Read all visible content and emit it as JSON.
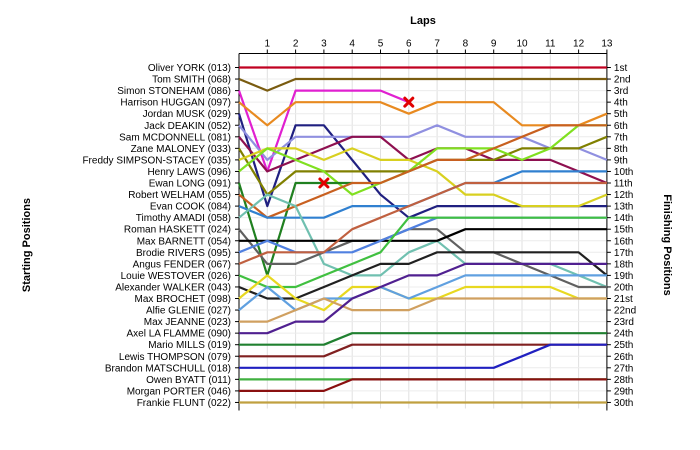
{
  "chart_data": {
    "type": "line",
    "title": "",
    "xlabel": "Laps",
    "ylabel_left": "Starting Positions",
    "ylabel_right": "Finishing Positions",
    "x": [
      0,
      1,
      2,
      3,
      4,
      5,
      6,
      7,
      8,
      9,
      10,
      11,
      12,
      13
    ],
    "x_tick_labels": [
      "1",
      "2",
      "3",
      "4",
      "5",
      "6",
      "7",
      "8",
      "9",
      "10",
      "11",
      "12",
      "13"
    ],
    "y_range": [
      1,
      30
    ],
    "y_inverted": true,
    "grid": true,
    "finishing_labels": [
      "1st",
      "2nd",
      "3rd",
      "4th",
      "5th",
      "6th",
      "7th",
      "8th",
      "9th",
      "10th",
      "11th",
      "12th",
      "13th",
      "14th",
      "15th",
      "16th",
      "17th",
      "18th",
      "19th",
      "20th",
      "21st",
      "22nd",
      "23rd",
      "24th",
      "25th",
      "26th",
      "27th",
      "28th",
      "29th",
      "30th"
    ],
    "series": [
      {
        "name": "Oliver YORK (013)",
        "color": "#c00020",
        "values": [
          1,
          1,
          1,
          1,
          1,
          1,
          1,
          1,
          1,
          1,
          1,
          1,
          1,
          1
        ]
      },
      {
        "name": "Tom SMITH (068)",
        "color": "#7a5c10",
        "values": [
          2,
          3,
          2,
          2,
          2,
          2,
          2,
          2,
          2,
          2,
          2,
          2,
          2,
          2
        ]
      },
      {
        "name": "Simon STONEHAM (086)",
        "color": "#e020d0",
        "values": [
          3,
          10,
          3,
          3,
          3,
          3,
          4,
          null,
          null,
          null,
          null,
          null,
          null,
          null
        ]
      },
      {
        "name": "Harrison HUGGAN (097)",
        "color": "#e88a20",
        "values": [
          4,
          6,
          4,
          4,
          4,
          4,
          5,
          4,
          4,
          4,
          6,
          6,
          6,
          5
        ]
      },
      {
        "name": "Jordan MUSK (029)",
        "color": "#202080",
        "values": [
          5,
          13,
          6,
          6,
          9,
          12,
          14,
          13,
          13,
          13,
          13,
          13,
          13,
          13
        ]
      },
      {
        "name": "Jack DEAKIN (052)",
        "color": "#9090e0",
        "values": [
          6,
          9,
          7,
          7,
          7,
          7,
          7,
          6,
          7,
          7,
          7,
          8,
          8,
          9
        ]
      },
      {
        "name": "Sam MCDONNELL (081)",
        "color": "#8e1050",
        "values": [
          7,
          10,
          9,
          8,
          7,
          7,
          9,
          8,
          8,
          9,
          9,
          9,
          10,
          11
        ]
      },
      {
        "name": "Zane MALONEY (033)",
        "color": "#808000",
        "values": [
          8,
          12,
          10,
          10,
          10,
          10,
          10,
          9,
          9,
          9,
          8,
          8,
          8,
          7
        ]
      },
      {
        "name": "Freddy SIMPSON-STACEY (035)",
        "color": "#d8d020",
        "values": [
          9,
          8,
          8,
          9,
          8,
          9,
          9,
          10,
          12,
          12,
          13,
          13,
          13,
          12
        ]
      },
      {
        "name": "Henry LAWS (096)",
        "color": "#80e020",
        "values": [
          10,
          8,
          9,
          10,
          12,
          11,
          10,
          8,
          8,
          8,
          9,
          8,
          6,
          6
        ]
      },
      {
        "name": "Ewan LONG (091)",
        "color": "#208020",
        "values": [
          11,
          19,
          11,
          11,
          11,
          null,
          null,
          null,
          null,
          null,
          null,
          null,
          null,
          null
        ]
      },
      {
        "name": "Robert WELHAM (055)",
        "color": "#c86020",
        "values": [
          12,
          14,
          13,
          12,
          11,
          11,
          10,
          9,
          9,
          8,
          7,
          6,
          6,
          6
        ]
      },
      {
        "name": "Evan COOK (084)",
        "color": "#3080d0",
        "values": [
          13,
          14,
          14,
          14,
          13,
          13,
          13,
          12,
          11,
          11,
          10,
          10,
          10,
          10
        ]
      },
      {
        "name": "Timothy AMADI (058)",
        "color": "#70c0b0",
        "values": [
          14,
          12,
          13,
          18,
          19,
          19,
          17,
          16,
          18,
          18,
          18,
          18,
          19,
          20
        ]
      },
      {
        "name": "Roman HASKETT (024)",
        "color": "#606060",
        "values": [
          15,
          18,
          18,
          17,
          16,
          16,
          15,
          15,
          17,
          17,
          18,
          19,
          20,
          20
        ]
      },
      {
        "name": "Max BARNETT (054)",
        "color": "#000000",
        "values": [
          16,
          16,
          16,
          16,
          16,
          16,
          16,
          16,
          15,
          15,
          15,
          15,
          15,
          15
        ]
      },
      {
        "name": "Brodie RIVERS (095)",
        "color": "#5080e0",
        "values": [
          17,
          16,
          17,
          17,
          17,
          16,
          15,
          14,
          14,
          14,
          14,
          14,
          14,
          14
        ]
      },
      {
        "name": "Angus FENDER (067)",
        "color": "#c06040",
        "values": [
          18,
          17,
          17,
          17,
          15,
          14,
          13,
          12,
          11,
          11,
          11,
          11,
          11,
          11
        ]
      },
      {
        "name": "Louie WESTOVER (026)",
        "color": "#40c040",
        "values": [
          19,
          20,
          20,
          19,
          18,
          17,
          14,
          14,
          14,
          14,
          14,
          14,
          14,
          14
        ]
      },
      {
        "name": "Alexander WALKER (043)",
        "color": "#202020",
        "values": [
          20,
          21,
          21,
          20,
          19,
          18,
          18,
          17,
          17,
          17,
          17,
          17,
          17,
          19
        ]
      },
      {
        "name": "Max BROCHET (098)",
        "color": "#e8d820",
        "values": [
          21,
          19,
          21,
          22,
          20,
          20,
          21,
          21,
          20,
          20,
          20,
          20,
          21,
          21
        ]
      },
      {
        "name": "Alfie GLENIE (027)",
        "color": "#60a0e0",
        "values": [
          22,
          20,
          22,
          21,
          21,
          20,
          21,
          20,
          19,
          19,
          19,
          19,
          19,
          19
        ]
      },
      {
        "name": "Max JEANNE (023)",
        "color": "#d0a060",
        "values": [
          23,
          23,
          22,
          21,
          22,
          22,
          22,
          21,
          21,
          21,
          21,
          21,
          21,
          21
        ]
      },
      {
        "name": "Axel LA FLAMME (090)",
        "color": "#502090",
        "values": [
          24,
          24,
          23,
          23,
          21,
          20,
          19,
          19,
          18,
          18,
          18,
          18,
          18,
          18
        ]
      },
      {
        "name": "Mario MILLS (019)",
        "color": "#208030",
        "values": [
          25,
          25,
          25,
          25,
          24,
          24,
          24,
          24,
          24,
          24,
          24,
          24,
          24,
          24
        ]
      },
      {
        "name": "Lewis THOMPSON (079)",
        "color": "#802020",
        "values": [
          26,
          26,
          26,
          26,
          25,
          25,
          25,
          25,
          25,
          25,
          25,
          25,
          25,
          25
        ]
      },
      {
        "name": "Brandon MATSCHULL (018)",
        "color": "#2020c0",
        "values": [
          27,
          27,
          27,
          27,
          27,
          27,
          27,
          27,
          27,
          27,
          26,
          25,
          25,
          25
        ]
      },
      {
        "name": "Owen BYATT (011)",
        "color": "#40b040",
        "values": [
          28,
          28,
          28,
          28,
          28,
          28,
          28,
          28,
          28,
          28,
          28,
          28,
          28,
          28
        ]
      },
      {
        "name": "Morgan PORTER (046)",
        "color": "#8a1010",
        "values": [
          29,
          29,
          29,
          29,
          28,
          28,
          28,
          28,
          28,
          28,
          28,
          28,
          28,
          28
        ]
      },
      {
        "name": "Frankie FLUNT (022)",
        "color": "#c0a040",
        "values": [
          30,
          30,
          30,
          30,
          30,
          30,
          30,
          30,
          30,
          30,
          30,
          30,
          30,
          30
        ]
      }
    ],
    "retirements": [
      {
        "series": "Simon STONEHAM (086)",
        "lap": 6,
        "position": 4
      },
      {
        "series": "Ewan LONG (091)",
        "lap": 3,
        "position": 11
      }
    ]
  }
}
